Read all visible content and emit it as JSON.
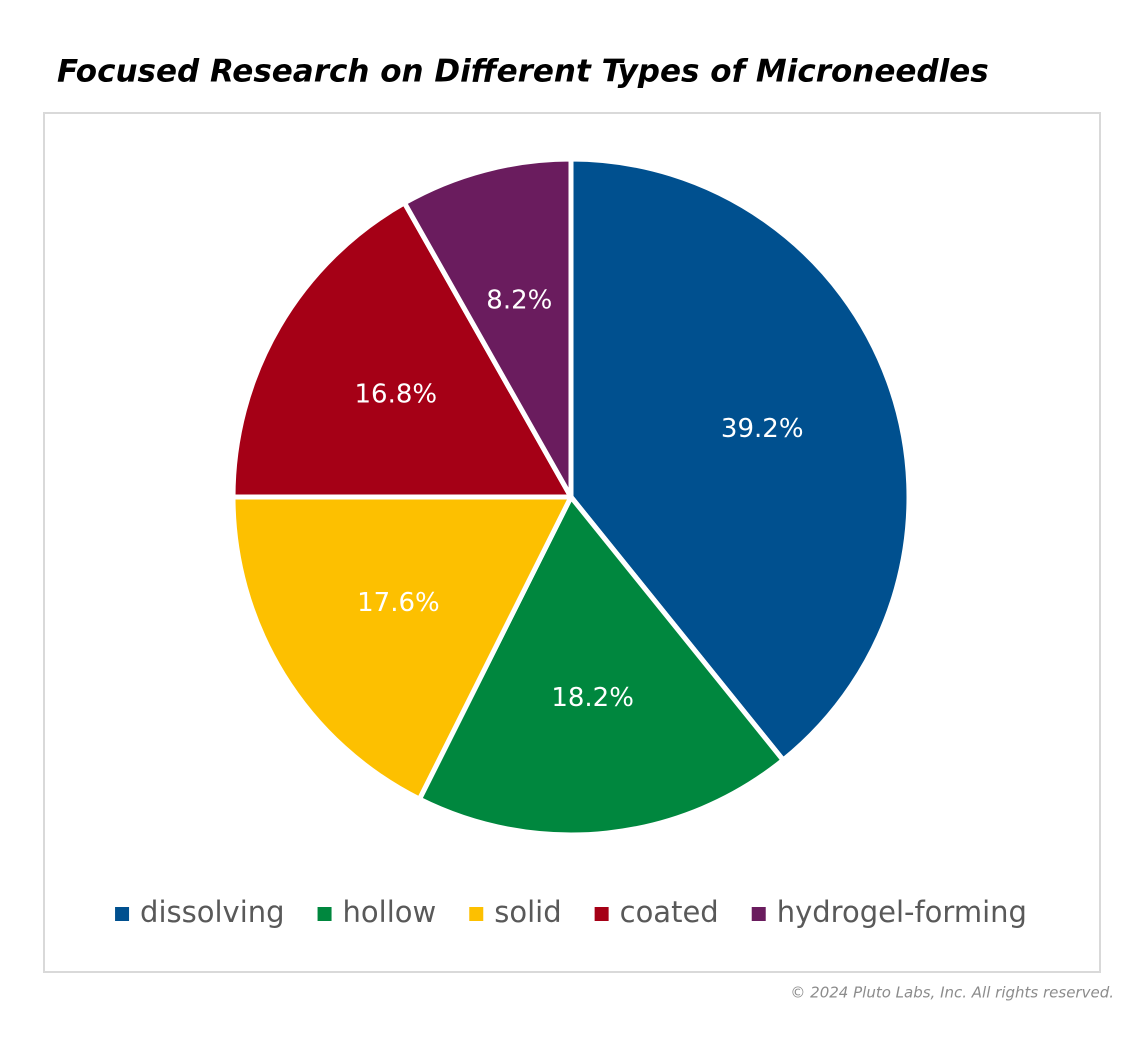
{
  "chart_data": {
    "type": "pie",
    "title": "Focused Research on Different Types of Microneedles",
    "categories": [
      "dissolving",
      "hollow",
      "solid",
      "coated",
      "hydrogel-forming"
    ],
    "values": [
      39.2,
      18.2,
      17.6,
      16.8,
      8.2
    ],
    "value_labels": [
      "39.2%",
      "18.2%",
      "17.6%",
      "16.8%",
      "8.2%"
    ],
    "colors": [
      "#00508f",
      "#00873e",
      "#fdc000",
      "#a50016",
      "#6a1c5e"
    ],
    "legend": "bottom",
    "copyright": "© 2024 Pluto Labs, Inc. All rights reserved."
  }
}
